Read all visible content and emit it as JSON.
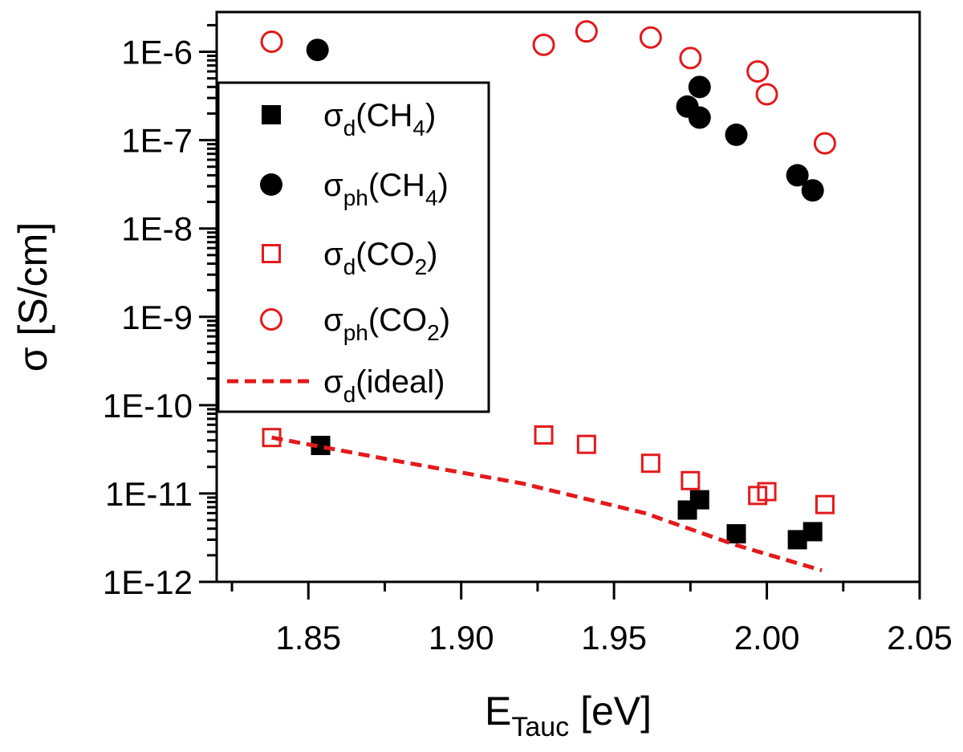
{
  "chart_data": {
    "type": "scatter",
    "xlabel": {
      "main": "E",
      "sub": "Tauc",
      "unit": " [eV]"
    },
    "ylabel": "σ [S/cm]",
    "xlim": [
      1.82,
      2.05
    ],
    "ylim_log10": [
      -12,
      -5.55
    ],
    "log_y": true,
    "grid": false,
    "legend_position": "top-left",
    "x_ticks": [
      {
        "value": 1.85,
        "label": "1.85"
      },
      {
        "value": 1.9,
        "label": "1.90"
      },
      {
        "value": 1.95,
        "label": "1.95"
      },
      {
        "value": 2.0,
        "label": "2.00"
      },
      {
        "value": 2.05,
        "label": "2.05"
      }
    ],
    "y_ticks": [
      {
        "value": 1e-12,
        "label": "1E-12"
      },
      {
        "value": 1e-11,
        "label": "1E-11"
      },
      {
        "value": 1e-10,
        "label": "1E-10"
      },
      {
        "value": 1e-09,
        "label": "1E-9"
      },
      {
        "value": 1e-08,
        "label": "1E-8"
      },
      {
        "value": 1e-07,
        "label": "1E-7"
      },
      {
        "value": 1e-06,
        "label": "1E-6"
      }
    ],
    "series": [
      {
        "name": "σd(CH4)",
        "label_main": "σ",
        "label_sub": "d",
        "label_tail": "(CH",
        "label_sub2": "4",
        "label_end": ")",
        "marker": "square-filled",
        "color": "#000000",
        "points": [
          {
            "x": 1.854,
            "y": 3.5e-11
          },
          {
            "x": 1.974,
            "y": 6.5e-12
          },
          {
            "x": 1.978,
            "y": 8.5e-12
          },
          {
            "x": 1.99,
            "y": 3.5e-12
          },
          {
            "x": 2.01,
            "y": 3e-12
          },
          {
            "x": 2.015,
            "y": 3.7e-12
          }
        ]
      },
      {
        "name": "σph(CH4)",
        "label_main": "σ",
        "label_sub": "ph",
        "label_tail": "(CH",
        "label_sub2": "4",
        "label_end": ")",
        "marker": "circle-filled",
        "color": "#000000",
        "points": [
          {
            "x": 1.853,
            "y": 1.05e-06
          },
          {
            "x": 1.974,
            "y": 2.4e-07
          },
          {
            "x": 1.978,
            "y": 4e-07
          },
          {
            "x": 1.978,
            "y": 1.8e-07
          },
          {
            "x": 1.99,
            "y": 1.15e-07
          },
          {
            "x": 2.01,
            "y": 4e-08
          },
          {
            "x": 2.015,
            "y": 2.7e-08
          }
        ]
      },
      {
        "name": "σd(CO2)",
        "label_main": "σ",
        "label_sub": "d",
        "label_tail": "(CO",
        "label_sub2": "2",
        "label_end": ")",
        "marker": "square-open",
        "color": "#e31a1c",
        "points": [
          {
            "x": 1.838,
            "y": 4.3e-11
          },
          {
            "x": 1.927,
            "y": 4.6e-11
          },
          {
            "x": 1.941,
            "y": 3.6e-11
          },
          {
            "x": 1.962,
            "y": 2.2e-11
          },
          {
            "x": 1.975,
            "y": 1.4e-11
          },
          {
            "x": 1.997,
            "y": 9.5e-12
          },
          {
            "x": 2.0,
            "y": 1.05e-11
          },
          {
            "x": 2.019,
            "y": 7.5e-12
          }
        ]
      },
      {
        "name": "σph(CO2)",
        "label_main": "σ",
        "label_sub": "ph",
        "label_tail": "(CO",
        "label_sub2": "2",
        "label_end": ")",
        "marker": "circle-open",
        "color": "#e31a1c",
        "points": [
          {
            "x": 1.838,
            "y": 1.3e-06
          },
          {
            "x": 1.927,
            "y": 1.2e-06
          },
          {
            "x": 1.941,
            "y": 1.7e-06
          },
          {
            "x": 1.962,
            "y": 1.45e-06
          },
          {
            "x": 1.975,
            "y": 8.5e-07
          },
          {
            "x": 1.997,
            "y": 6e-07
          },
          {
            "x": 2.0,
            "y": 3.3e-07
          },
          {
            "x": 2.019,
            "y": 9.2e-08
          }
        ]
      },
      {
        "name": "σd(ideal)",
        "label_main": "σ",
        "label_sub": "d",
        "label_tail": "(ideal)",
        "label_sub2": "",
        "label_end": "",
        "marker": "dashed-line",
        "color": "#e31a1c",
        "points": [
          {
            "x": 1.838,
            "y": 4.3e-11
          },
          {
            "x": 1.88,
            "y": 2.3e-11
          },
          {
            "x": 1.92,
            "y": 1.3e-11
          },
          {
            "x": 1.96,
            "y": 6e-12
          },
          {
            "x": 1.99,
            "y": 2.6e-12
          },
          {
            "x": 2.018,
            "y": 1.35e-12
          }
        ]
      }
    ]
  }
}
